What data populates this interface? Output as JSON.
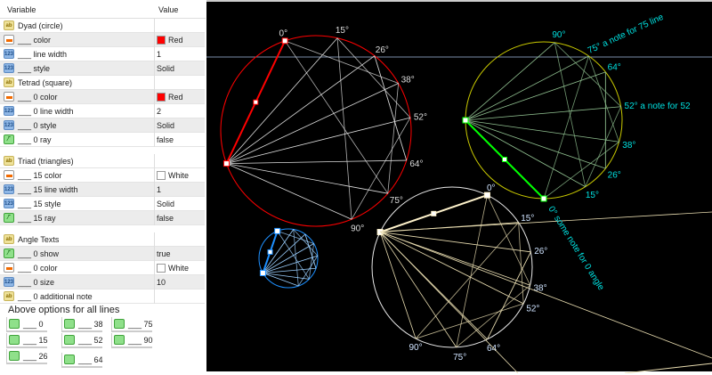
{
  "panel": {
    "header": {
      "variable": "Variable",
      "value": "Value"
    },
    "rows": [
      {
        "icon": "ab",
        "name": "Dyad (circle)",
        "value": ""
      },
      {
        "icon": "col",
        "name": "___ color",
        "value": "Red",
        "swatch": "#ff0000"
      },
      {
        "icon": "num",
        "name": "___ line width",
        "value": "1"
      },
      {
        "icon": "num",
        "name": "___ style",
        "value": "Solid"
      },
      {
        "icon": "ab",
        "name": "Tetrad (square)",
        "value": ""
      },
      {
        "icon": "col",
        "name": "___ 0 color",
        "value": "Red",
        "swatch": "#ff0000"
      },
      {
        "icon": "num",
        "name": "___ 0 line width",
        "value": "2"
      },
      {
        "icon": "num",
        "name": "___ 0 style",
        "value": "Solid"
      },
      {
        "icon": "bool",
        "name": "___ 0 ray",
        "value": "false"
      },
      {
        "icon": "ab",
        "name": "Triad (triangles)",
        "value": ""
      },
      {
        "icon": "col",
        "name": "___ 15 color",
        "value": "White",
        "swatch": "#ffffff"
      },
      {
        "icon": "num",
        "name": "___ 15 line width",
        "value": "1"
      },
      {
        "icon": "num",
        "name": "___ 15 style",
        "value": "Solid"
      },
      {
        "icon": "bool",
        "name": "___ 15 ray",
        "value": "false"
      },
      {
        "icon": "ab",
        "name": "Angle Texts",
        "value": ""
      },
      {
        "icon": "bool",
        "name": "___ 0 show",
        "value": "true"
      },
      {
        "icon": "col",
        "name": "___ 0 color",
        "value": "White",
        "swatch": "#ffffff"
      },
      {
        "icon": "num",
        "name": "___ 0 size",
        "value": "10"
      },
      {
        "icon": "ab",
        "name": "___ 0 additional note",
        "value": ""
      }
    ],
    "section_label": "Above options for all lines",
    "line_buttons": [
      "___ 0",
      "___ 15",
      "___ 26",
      "___ 38",
      "___ 52",
      "___ 64",
      "___ 75",
      "___ 90"
    ]
  },
  "chart": {
    "colors": {
      "red": "#ff0000",
      "yellow": "#c8c800",
      "white": "#e8e8e8",
      "blue": "#1e90ff",
      "green": "#00ff00",
      "label": "#00e0e0"
    },
    "red_labels": [
      "0°",
      "15°",
      "26°",
      "38°",
      "52°",
      "64°",
      "75°",
      "90°"
    ],
    "yellow_labels": [
      "0°",
      "15°",
      "26°",
      "38°",
      "52° a note for 52",
      "64°",
      "75° a note for 75 line",
      "90°"
    ],
    "white_labels": [
      "0°",
      "15°",
      "26°",
      "38°",
      "52°",
      "64°",
      "75°",
      "90°"
    ],
    "notes": {
      "zero": "0° some note for 0 angle"
    }
  }
}
